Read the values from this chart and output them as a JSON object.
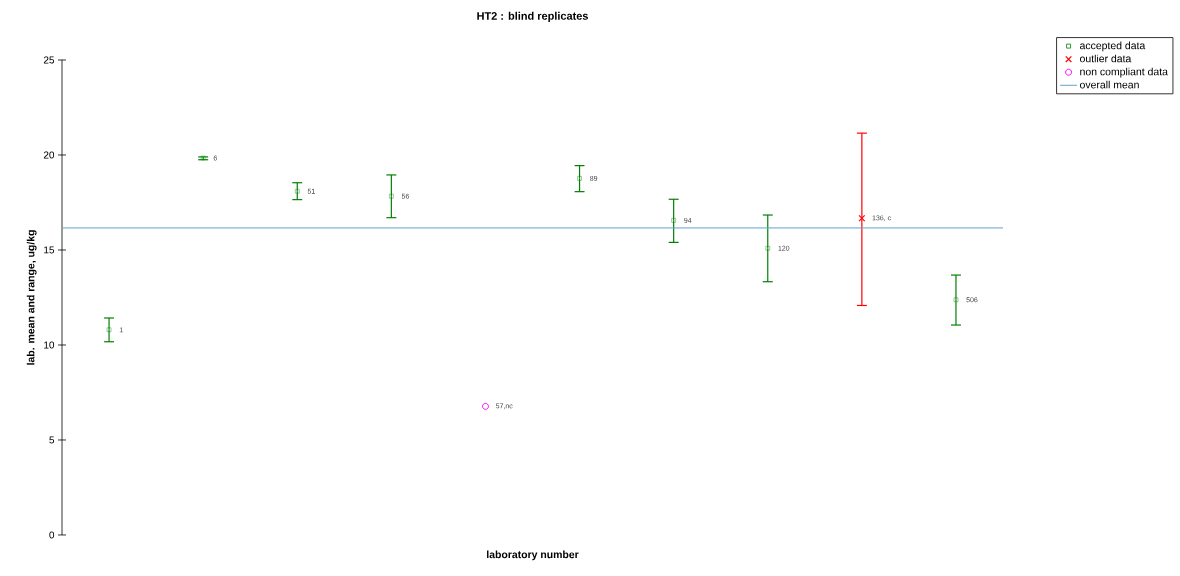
{
  "chart_data": {
    "type": "scatter",
    "title": "HT2 : blind replicates",
    "xlabel": "laboratory number",
    "ylabel": "lab. mean and range, ug/kg",
    "categories": [
      null,
      null,
      null,
      null,
      null,
      null,
      null,
      null,
      null,
      null
    ],
    "ylim": [
      0,
      25
    ],
    "yticks": [
      0,
      5,
      10,
      15,
      20,
      25
    ],
    "grid": false,
    "legend": "top right",
    "series": [
      {
        "name": "accepted data",
        "color": "#008000",
        "marker": "square",
        "values": [
          10.8,
          19.84,
          18.09,
          17.83,
          null,
          18.77,
          16.56,
          15.09,
          null,
          12.38
        ],
        "errors": [
          [
            10.17,
            11.42
          ],
          [
            19.75,
            19.9
          ],
          [
            17.65,
            18.54
          ],
          [
            16.7,
            18.95
          ],
          null,
          [
            18.07,
            19.44
          ],
          [
            15.4,
            17.67
          ],
          [
            13.33,
            16.84
          ],
          null,
          [
            11.05,
            13.68
          ]
        ]
      },
      {
        "name": "outlier data",
        "color": "#ff0000",
        "marker": "cross",
        "values": [
          null,
          null,
          null,
          null,
          null,
          null,
          null,
          null,
          16.67,
          null
        ],
        "errors": [
          null,
          null,
          null,
          null,
          null,
          null,
          null,
          null,
          [
            12.08,
            21.15
          ],
          null
        ]
      },
      {
        "name": "non compliant data",
        "color": "#ff00ff",
        "marker": "circle",
        "values": [
          null,
          null,
          null,
          null,
          6.77,
          null,
          null,
          null,
          null,
          null
        ]
      }
    ],
    "annotations": [
      "1",
      "6",
      "51",
      "56",
      "57,nc",
      "89",
      "94",
      "120",
      "136, c",
      "506"
    ],
    "ref_lines": [
      {
        "axis": "y",
        "value": 16.16,
        "label": "overall mean",
        "color": "#5fa3cf"
      }
    ]
  }
}
